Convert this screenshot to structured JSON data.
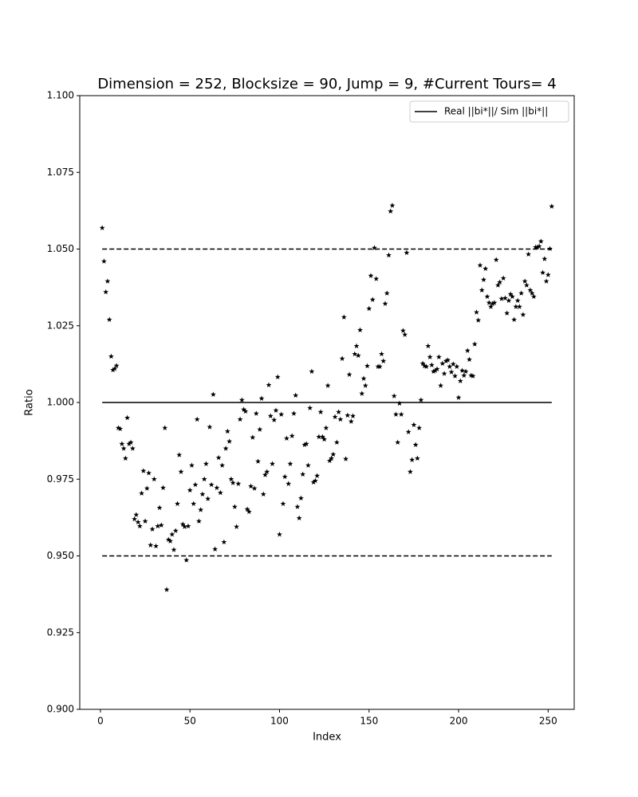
{
  "chart_data": {
    "type": "scatter",
    "title": "Dimension = 252, Blocksize = 90, Jump = 9, #Current Tours= 4",
    "x_label": "Index",
    "y_label": "Ratio",
    "marker": "*",
    "color": "#000000",
    "x": [
      1,
      2,
      3,
      4,
      5,
      6,
      7,
      8,
      9,
      10,
      11,
      12,
      13,
      14,
      15,
      16,
      17,
      18,
      19,
      20,
      21,
      22,
      23,
      24,
      25,
      26,
      27,
      28,
      29,
      30,
      31,
      32,
      33,
      34,
      35,
      36,
      37,
      38,
      39,
      40,
      41,
      42,
      43,
      44,
      45,
      46,
      47,
      48,
      49,
      50,
      51,
      52,
      53,
      54,
      55,
      56,
      57,
      58,
      59,
      60,
      61,
      62,
      63,
      64,
      65,
      66,
      67,
      68,
      69,
      70,
      71,
      72,
      73,
      74,
      75,
      76,
      77,
      78,
      79,
      80,
      81,
      82,
      83,
      84,
      85,
      86,
      87,
      88,
      89,
      90,
      91,
      92,
      93,
      94,
      95,
      96,
      97,
      98,
      99,
      100,
      101,
      102,
      103,
      104,
      105,
      106,
      107,
      108,
      109,
      110,
      111,
      112,
      113,
      114,
      115,
      116,
      117,
      118,
      119,
      120,
      121,
      122,
      123,
      124,
      125,
      126,
      127,
      128,
      129,
      130,
      131,
      132,
      133,
      134,
      135,
      136,
      137,
      138,
      139,
      140,
      141,
      142,
      143,
      144,
      145,
      146,
      147,
      148,
      149,
      150,
      151,
      152,
      153,
      154,
      155,
      156,
      157,
      158,
      159,
      160,
      161,
      162,
      163,
      164,
      165,
      166,
      167,
      168,
      169,
      170,
      171,
      172,
      173,
      174,
      175,
      176,
      177,
      178,
      179,
      180,
      181,
      182,
      183,
      184,
      185,
      186,
      187,
      188,
      189,
      190,
      191,
      192,
      193,
      194,
      195,
      196,
      197,
      198,
      199,
      200,
      201,
      202,
      203,
      204,
      205,
      206,
      207,
      208,
      209,
      210,
      211,
      212,
      213,
      214,
      215,
      216,
      217,
      218,
      219,
      220,
      221,
      222,
      223,
      224,
      225,
      226,
      227,
      228,
      229,
      230,
      231,
      232,
      233,
      234,
      235,
      236,
      237,
      238,
      239,
      240,
      241,
      242,
      243,
      244,
      245,
      246,
      247,
      248,
      249,
      250,
      251,
      252
    ],
    "values": [
      1.0569,
      1.046,
      1.036,
      1.0395,
      1.027,
      1.015,
      1.0106,
      1.011,
      1.012,
      0.9917,
      0.9914,
      0.9865,
      0.985,
      0.9818,
      0.995,
      0.9865,
      0.987,
      0.985,
      0.962,
      0.9634,
      0.961,
      0.9597,
      0.9704,
      0.9777,
      0.9613,
      0.972,
      0.977,
      0.9535,
      0.9587,
      0.975,
      0.9532,
      0.9597,
      0.9657,
      0.96,
      0.9722,
      0.9917,
      0.939,
      0.9553,
      0.9548,
      0.957,
      0.952,
      0.9582,
      0.967,
      0.9829,
      0.9774,
      0.9603,
      0.9595,
      0.9486,
      0.9597,
      0.9714,
      0.9795,
      0.967,
      0.9732,
      0.9945,
      0.9613,
      0.965,
      0.9701,
      0.975,
      0.98,
      0.9686,
      0.992,
      0.9732,
      1.0026,
      0.9522,
      0.9722,
      0.982,
      0.9706,
      0.9795,
      0.9545,
      0.985,
      0.9906,
      0.9873,
      0.975,
      0.9738,
      0.966,
      0.9595,
      0.9735,
      0.9945,
      1.0008,
      0.9977,
      0.9971,
      0.9652,
      0.9644,
      0.9727,
      0.9886,
      0.972,
      0.9964,
      0.9808,
      0.9912,
      1.0013,
      0.9701,
      0.9764,
      0.9774,
      1.0057,
      0.9956,
      0.98,
      0.9943,
      0.9974,
      1.0083,
      0.957,
      0.9961,
      0.967,
      0.9758,
      0.9883,
      0.9735,
      0.98,
      0.9891,
      0.9964,
      1.0023,
      0.966,
      0.9623,
      0.9688,
      0.9766,
      0.9862,
      0.9865,
      0.9795,
      0.9982,
      1.0101,
      0.974,
      0.9745,
      0.9761,
      0.9888,
      0.9969,
      0.9888,
      0.988,
      0.9917,
      1.0055,
      0.981,
      0.9818,
      0.9831,
      0.9953,
      0.987,
      0.9969,
      0.9945,
      1.0143,
      1.0278,
      0.9816,
      0.9958,
      1.0091,
      0.9938,
      0.9956,
      1.0158,
      1.0184,
      1.0153,
      1.0236,
      1.0029,
      1.0078,
      1.0055,
      1.0119,
      1.0306,
      1.0413,
      1.0335,
      1.0504,
      1.0403,
      1.0117,
      1.0117,
      1.0158,
      1.0135,
      1.0322,
      1.0356,
      1.048,
      1.0623,
      1.0642,
      1.0021,
      0.9961,
      0.987,
      0.9997,
      0.9961,
      1.0234,
      1.0221,
      1.0488,
      0.9904,
      0.9774,
      0.9813,
      0.9927,
      0.9862,
      0.9818,
      0.9917,
      1.0008,
      1.0127,
      1.0119,
      1.0117,
      1.0184,
      1.0148,
      1.0122,
      1.0101,
      1.0104,
      1.0109,
      1.0148,
      1.0055,
      1.0127,
      1.0094,
      1.0135,
      1.0138,
      1.0117,
      1.0099,
      1.0125,
      1.0086,
      1.0117,
      1.0016,
      1.007,
      1.0104,
      1.0088,
      1.0101,
      1.0169,
      1.014,
      1.0088,
      1.0086,
      1.019,
      1.0294,
      1.0268,
      1.0447,
      1.0366,
      1.04,
      1.0436,
      1.0345,
      1.0325,
      1.0312,
      1.0322,
      1.0325,
      1.0465,
      1.0382,
      1.0392,
      1.0338,
      1.0405,
      1.034,
      1.0291,
      1.0332,
      1.0353,
      1.0345,
      1.027,
      1.0312,
      1.0332,
      1.0312,
      1.0356,
      1.0286,
      1.0395,
      1.0382,
      1.0483,
      1.0366,
      1.0356,
      1.0345,
      1.0506,
      1.0506,
      1.0509,
      1.0525,
      1.0423,
      1.0468,
      1.0395,
      1.0416,
      1.0501,
      1.0639
    ],
    "reference_lines": [
      {
        "name": "Real ||bi*||/ Sim ||bi*||",
        "style": "solid",
        "color": "#000000",
        "x": [
          1,
          252
        ],
        "values": [
          1.0,
          1.0
        ]
      },
      {
        "style": "dashed",
        "color": "#000000",
        "x": [
          1,
          252
        ],
        "values": [
          1.05,
          1.05
        ]
      },
      {
        "style": "dashed",
        "color": "#000000",
        "x": [
          1,
          252
        ],
        "values": [
          0.95,
          0.95
        ]
      }
    ],
    "legend": "upper right",
    "xlim": [
      -11.55,
      264.55
    ],
    "ylim": [
      0.9,
      1.1
    ],
    "xticks": [
      0,
      50,
      100,
      150,
      200,
      250
    ],
    "yticks": [
      {
        "value": 0.9,
        "label": "0.900"
      },
      {
        "value": 0.925,
        "label": "0.925"
      },
      {
        "value": 0.95,
        "label": "0.950"
      },
      {
        "value": 0.975,
        "label": "0.975"
      },
      {
        "value": 1.0,
        "label": "1.000"
      },
      {
        "value": 1.025,
        "label": "1.025"
      },
      {
        "value": 1.05,
        "label": "1.050"
      },
      {
        "value": 1.075,
        "label": "1.075"
      },
      {
        "value": 1.1,
        "label": "1.100"
      }
    ],
    "grid": false
  }
}
